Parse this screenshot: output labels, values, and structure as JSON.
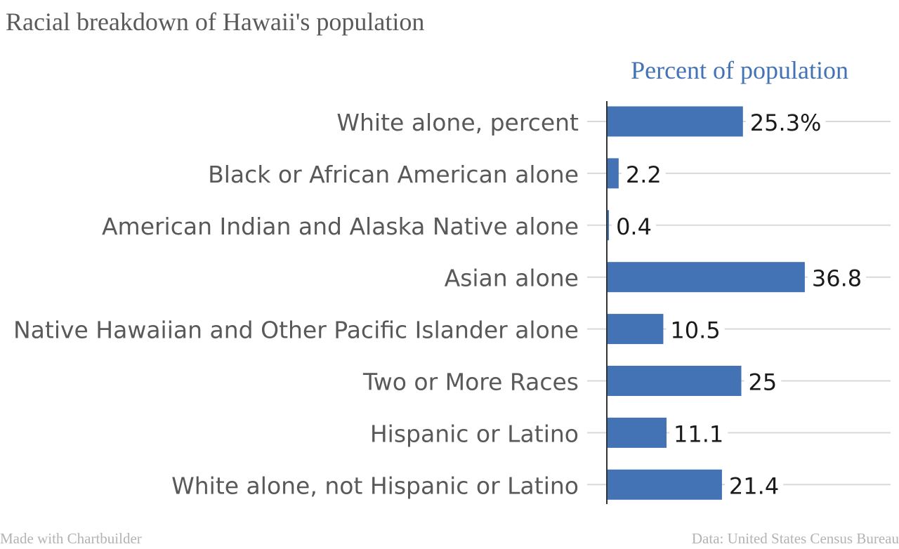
{
  "title": "Racial breakdown of Hawaii's population",
  "footer": {
    "credit": "Made with Chartbuilder",
    "source": "Data: United States Census Bureau"
  },
  "colors": {
    "bar": "#4473b5",
    "series_label": "#4473b5",
    "category_label": "#595959",
    "value_label": "#1a1a1a",
    "gridline": "#d9d9d9",
    "axis": "#333333",
    "title": "#5a5a5a",
    "footer": "#b3b3b3"
  },
  "chart_data": {
    "type": "bar",
    "orientation": "horizontal",
    "title": "Racial breakdown of Hawaii's population",
    "series": [
      {
        "name": "Percent of population",
        "values": [
          25.3,
          2.2,
          0.4,
          36.8,
          10.5,
          25,
          11.1,
          21.4
        ]
      }
    ],
    "categories": [
      "White alone, percent",
      "Black or African American alone",
      "American Indian and Alaska Native alone",
      "Asian alone",
      "Native Hawaiian and Other Pacific Islander alone",
      "Two or More Races",
      "Hispanic or Latino",
      "White alone, not Hispanic or Latino"
    ],
    "value_labels": [
      "25.3%",
      "2.2",
      "0.4",
      "36.8",
      "10.5",
      "25",
      "11.1",
      "21.4"
    ],
    "xlim": [
      0,
      42
    ],
    "grid": true,
    "legend": "top"
  }
}
